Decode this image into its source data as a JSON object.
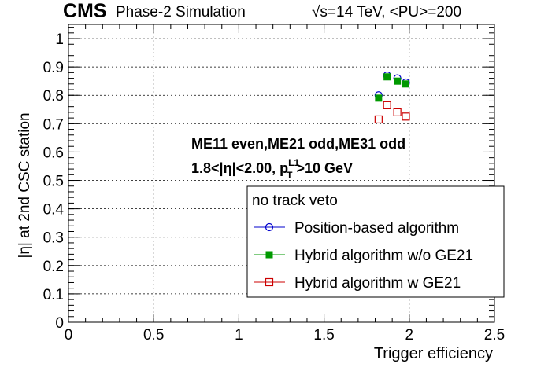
{
  "header": {
    "cms": "CMS",
    "subtitle": "Phase-2 Simulation",
    "energy": "√s=14 TeV, <PU>=200"
  },
  "annotations": {
    "line1": "ME11 even,ME21 odd,ME31 odd",
    "line2_prefix": "1.8<|η|<2.00, p",
    "line2_sup": "L1",
    "line2_sub": "T",
    "line2_suffix": ">10 GeV"
  },
  "colors": {
    "position": "#0000cc",
    "hybrid_no_ge21": "#009900",
    "hybrid_ge21": "#cc0000"
  },
  "chart_data": {
    "type": "scatter",
    "xlabel": "Trigger efficiency",
    "ylabel": "|η| at 2nd CSC station",
    "xlim": [
      0,
      2.5
    ],
    "ylim": [
      0,
      1.05
    ],
    "xticks": [
      "0",
      "0.5",
      "1",
      "1.5",
      "2",
      "2.5"
    ],
    "yticks": [
      "0",
      "0.1",
      "0.2",
      "0.3",
      "0.4",
      "0.5",
      "0.6",
      "0.7",
      "0.8",
      "0.9",
      "1"
    ],
    "grid": true,
    "legend_title": "no track veto",
    "legend_position": "center-right",
    "series": [
      {
        "name": "Position-based algorithm",
        "marker": "open-circle",
        "points": [
          [
            1.82,
            0.8
          ],
          [
            1.87,
            0.87
          ],
          [
            1.93,
            0.86
          ],
          [
            1.98,
            0.845
          ]
        ]
      },
      {
        "name": "Hybrid algorithm w/o GE21",
        "marker": "filled-square",
        "points": [
          [
            1.82,
            0.79
          ],
          [
            1.87,
            0.865
          ],
          [
            1.93,
            0.85
          ],
          [
            1.98,
            0.84
          ]
        ]
      },
      {
        "name": "Hybrid algorithm w GE21",
        "marker": "open-square",
        "points": [
          [
            1.82,
            0.715
          ],
          [
            1.87,
            0.765
          ],
          [
            1.93,
            0.74
          ],
          [
            1.98,
            0.725
          ]
        ]
      }
    ]
  }
}
